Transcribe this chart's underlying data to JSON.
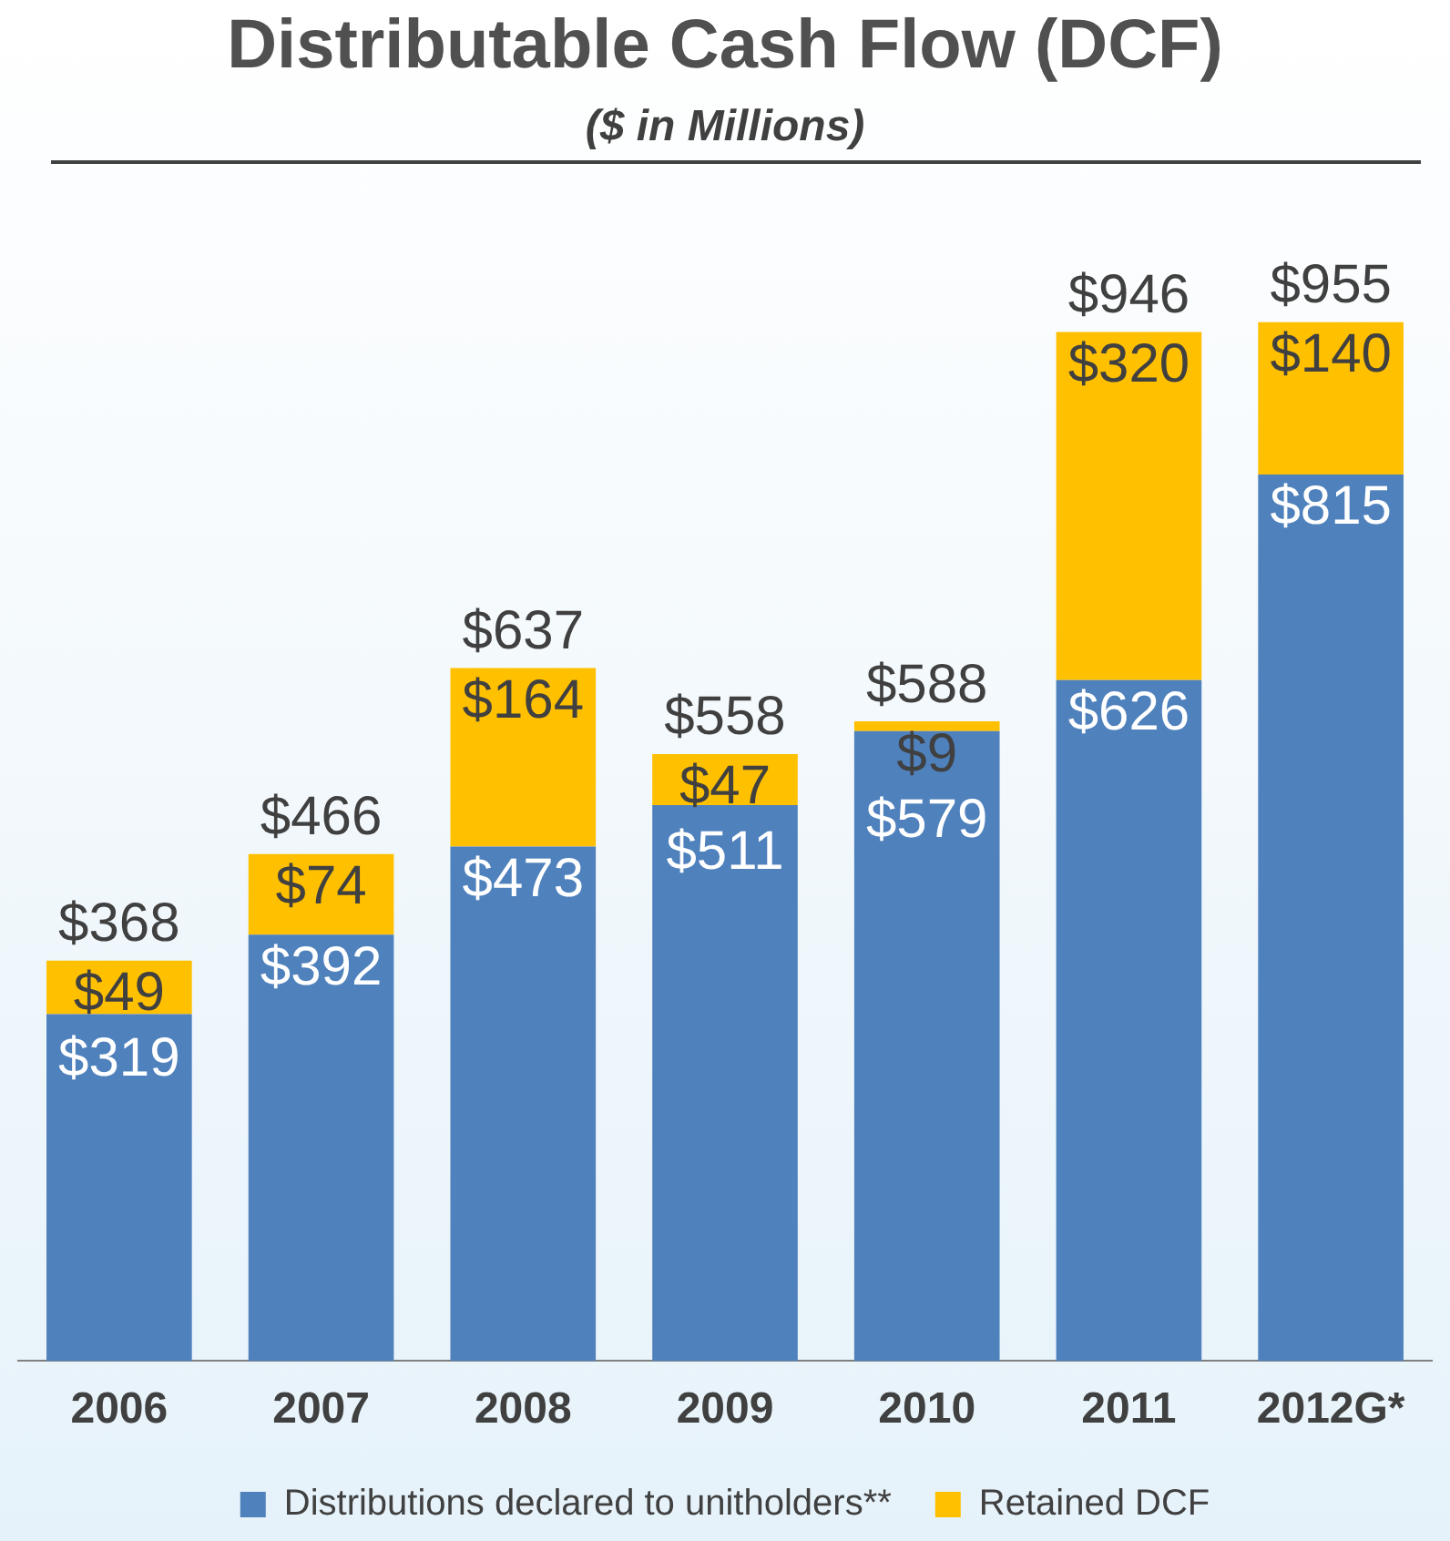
{
  "chart_data": {
    "type": "bar",
    "title": "Distributable Cash Flow (DCF)",
    "subtitle": "($ in Millions)",
    "categories": [
      "2006",
      "2007",
      "2008",
      "2009",
      "2010",
      "2011",
      "2012G*"
    ],
    "stacked": true,
    "legend": "bottom",
    "grid": false,
    "series": [
      {
        "name": "Distributions declared to unitholders**",
        "color": "#4f81bd",
        "values": [
          319,
          392,
          473,
          511,
          579,
          626,
          815
        ],
        "value_labels": [
          "$319",
          "$392",
          "$473",
          "$511",
          "$579",
          "$626",
          "$815"
        ]
      },
      {
        "name": "Retained DCF",
        "color": "#ffc000",
        "values": [
          49,
          74,
          164,
          47,
          9,
          320,
          140
        ],
        "value_labels": [
          "$49",
          "$74",
          "$164",
          "$47",
          "$9",
          "$320",
          "$140"
        ]
      }
    ],
    "totals": [
      "$368",
      "$466",
      "$637",
      "$558",
      "$588",
      "$946",
      "$955"
    ]
  }
}
